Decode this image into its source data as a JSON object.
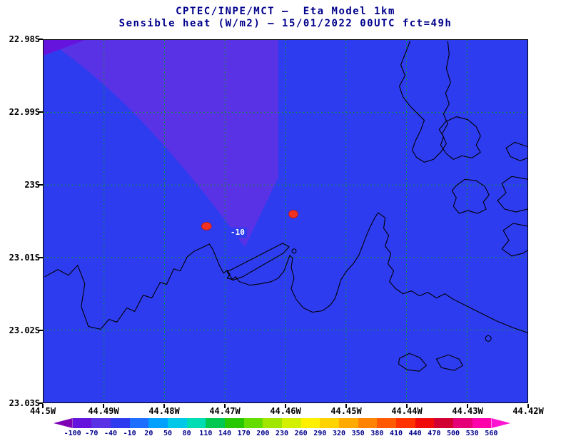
{
  "header": {
    "title_line1": "CPTEC/INPE/MCT —  Eta Model 1km",
    "title_line2": "Sensible heat (W/m2) — 15/01/2022 00UTC fct=49h"
  },
  "chart_data": {
    "type": "heatmap",
    "title": "CPTEC/INPE/MCT — Eta Model 1km",
    "subtitle": "Sensible heat (W/m2) — 15/01/2022 00UTC fct=49h",
    "institution": "CPTEC/INPE/MCT",
    "model": "Eta Model 1km",
    "variable": "Sensible heat (W/m2)",
    "valid_time": "15/01/2022 00UTC",
    "forecast_hour": "fct=49h",
    "x_axis": {
      "labels": [
        "44.5W",
        "44.49W",
        "44.48W",
        "44.47W",
        "44.46W",
        "44.45W",
        "44.44W",
        "44.43W",
        "44.42W"
      ]
    },
    "y_axis": {
      "labels": [
        "22.98S",
        "22.99S",
        "23S",
        "23.01S",
        "23.02S",
        "23.03S"
      ]
    },
    "grid": {
      "color": "#00b400",
      "style": "dotted"
    },
    "colorbar": {
      "labels": [
        "-100",
        "-70",
        "-40",
        "-10",
        "20",
        "50",
        "80",
        "110",
        "140",
        "170",
        "200",
        "230",
        "260",
        "290",
        "320",
        "350",
        "380",
        "410",
        "440",
        "470",
        "500",
        "530",
        "560"
      ],
      "colors": [
        "#7d00b4",
        "#6414dc",
        "#5a32e6",
        "#2e3cf0",
        "#1e6eff",
        "#00a0ff",
        "#00c8e6",
        "#00dcb4",
        "#00c850",
        "#28c800",
        "#64dc00",
        "#a0e600",
        "#d2f000",
        "#fff000",
        "#ffd200",
        "#ffaa00",
        "#ff8200",
        "#ff5a00",
        "#ff3200",
        "#f00a0a",
        "#d20032",
        "#e60078",
        "#ff00aa",
        "#ff14d2"
      ]
    },
    "field_colors": {
      "sea_band_-10_20": "#2e3cf0",
      "band_-40_-10": "#5a32e6",
      "band_-70_-40": "#6414dc"
    },
    "contour_label": "-10",
    "markers": {
      "color": "#f23220",
      "count": 2
    },
    "coastline_color": "#000000"
  }
}
